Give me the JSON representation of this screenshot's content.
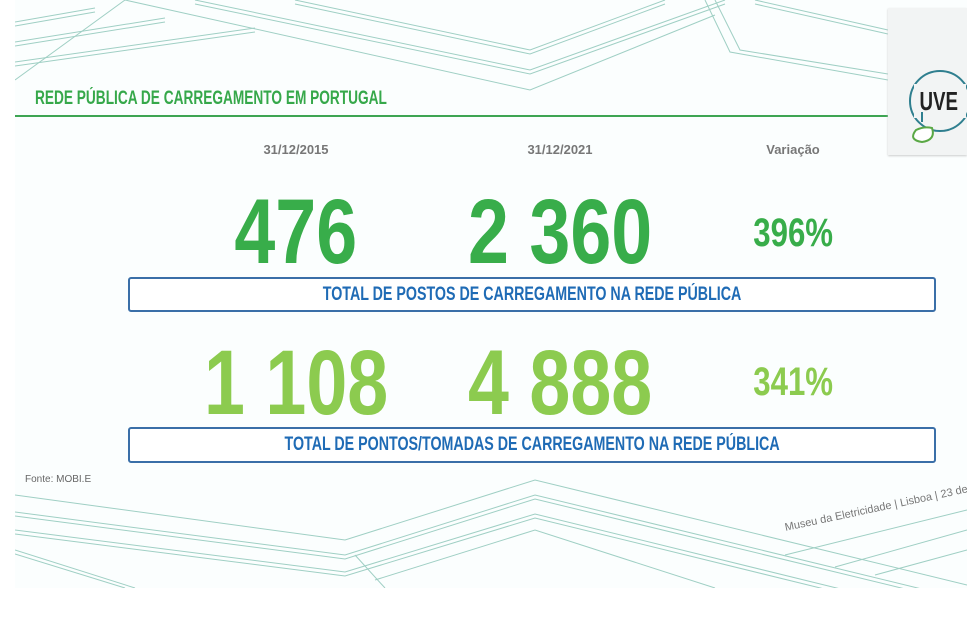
{
  "slide": {
    "title": "REDE PÚBLICA DE CARREGAMENTO EM PORTUGAL",
    "columns": [
      "31/12/2015",
      "31/12/2021",
      "Variação"
    ],
    "rows": [
      {
        "values": [
          "476",
          "2 360"
        ],
        "variation": "396%",
        "label": "TOTAL DE POSTOS DE CARREGAMENTO NA REDE PÚBLICA",
        "color": "#38ad4a"
      },
      {
        "values": [
          "1 108",
          "4 888"
        ],
        "variation": "341%",
        "label": "TOTAL DE PONTOS/TOMADAS DE CARREGAMENTO NA REDE PÚBLICA",
        "color": "#8ccb4f"
      }
    ],
    "source": "Fonte: MOBI.E",
    "footer": "Museu da Eletricidade | Lisboa | 23 de",
    "logo_text": "UVE",
    "colors": {
      "accent_green": "#38ad4a",
      "light_green": "#8ccb4f",
      "blue": "#1f6bb5"
    }
  }
}
